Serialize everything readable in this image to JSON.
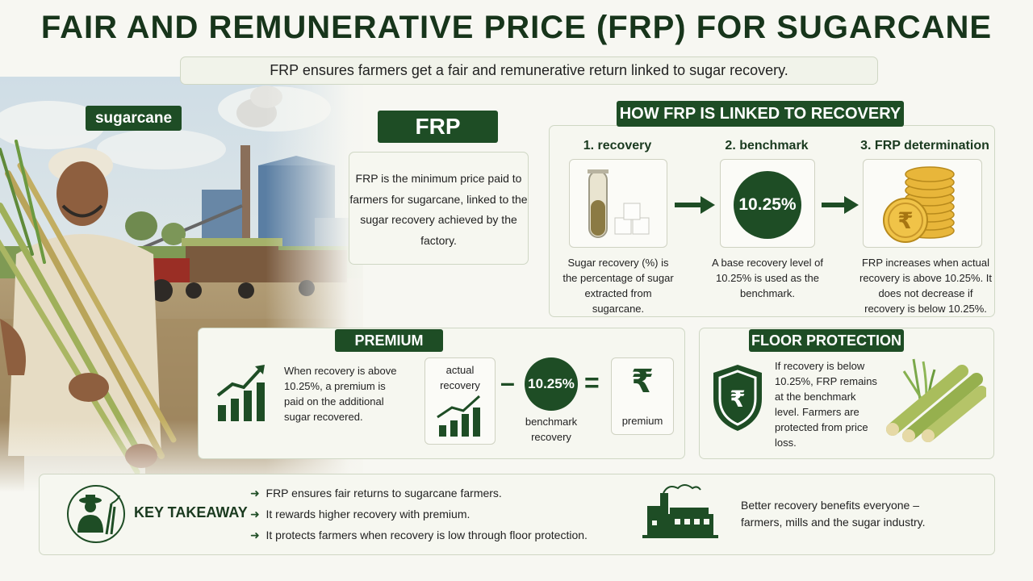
{
  "title": "FAIR AND REMUNERATIVE PRICE (FRP) FOR SUGARCANE",
  "subtitle": "FRP ensures farmers get a fair and remunerative return linked to sugar recovery.",
  "photo_label": "sugarcane",
  "frp": {
    "label": "FRP",
    "description": "FRP is the minimum price paid to farmers for sugarcane, linked to the sugar recovery achieved by the factory."
  },
  "how": {
    "heading": "HOW FRP IS LINKED TO RECOVERY",
    "steps": [
      {
        "title": "1. recovery",
        "text": "Sugar recovery (%) is the percentage of sugar extracted from sugarcane."
      },
      {
        "title": "2. benchmark",
        "value": "10.25%",
        "text": "A base recovery level of 10.25% is used as the benchmark."
      },
      {
        "title": "3. FRP determination",
        "text": "FRP increases when actual recovery is above 10.25%. It does not decrease if recovery is below 10.25%."
      }
    ]
  },
  "premium": {
    "heading": "PREMIUM",
    "text": "When recovery is above 10.25%, a premium is paid on the additional sugar recovered.",
    "actual_label": "actual recovery",
    "minus": "–",
    "benchmark_value": "10.25%",
    "benchmark_label": "benchmark recovery",
    "equals": "=",
    "rupee": "₹",
    "result_label": "premium"
  },
  "floor": {
    "heading": "FLOOR PROTECTION",
    "rupee": "₹",
    "text": "If recovery is below 10.25%, FRP remains at the benchmark level. Farmers are protected from price loss."
  },
  "takeaway": {
    "heading": "KEY TAKEAWAY",
    "bullets": [
      "FRP ensures fair returns to sugarcane farmers.",
      "It rewards higher recovery with premium.",
      "It protects farmers when recovery is low through floor protection."
    ],
    "closing": "Better recovery benefits everyone – farmers, mills and the sugar industry."
  },
  "colors": {
    "dark_green": "#1e4d25",
    "panel_border": "#cfd7c4",
    "gold": "#e8b63a"
  },
  "icons": [
    "test-tube-icon",
    "sugar-cubes-icon",
    "gold-coins-icon",
    "rupee-shield-icon",
    "growth-chart-icon",
    "farmer-icon",
    "factory-icon",
    "sugarcane-stalks-icon",
    "arrow-right-icon"
  ]
}
